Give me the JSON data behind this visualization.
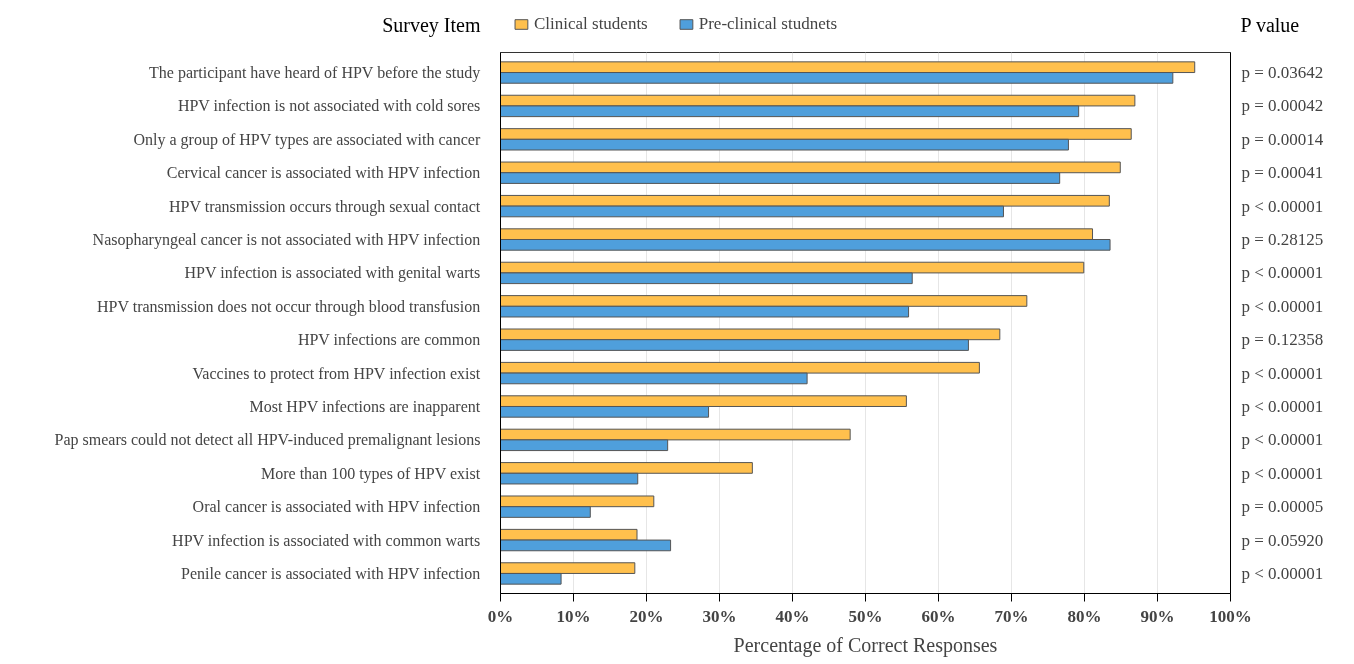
{
  "chart_data": {
    "type": "bar",
    "orientation": "horizontal",
    "ylabel": "Survey Item",
    "y2label": "P value",
    "xlabel": "Percentage of Correct Responses",
    "categories": [
      "The participant have heard of HPV before the study",
      "HPV infection is not associated with cold sores",
      "Only a group of HPV types are associated with cancer",
      "Cervical cancer is associated with HPV infection",
      "HPV transmission occurs through sexual contact",
      "Nasopharyngeal cancer is not associated with HPV infection",
      "HPV infection is associated with genital warts",
      "HPV transmission does not occur through blood transfusion",
      "HPV infections are common",
      "Vaccines to protect from HPV infection exist",
      "Most HPV infections are inapparent",
      "Pap smears could not detect all HPV-induced premalignant lesions",
      "More than 100 types of HPV exist",
      "Oral cancer is associated with HPV infection",
      "HPV infection is associated with common warts",
      "Penile cancer is associated with HPV infection"
    ],
    "series": [
      {
        "name": "Clinical students",
        "color": "#ffc04d",
        "values": [
          95.1,
          86.9,
          86.4,
          84.9,
          83.4,
          81.1,
          79.9,
          72.1,
          68.4,
          65.6,
          55.6,
          47.9,
          34.5,
          21.0,
          18.7,
          18.4
        ]
      },
      {
        "name": "Pre-clinical studnets",
        "color": "#4f9fdc",
        "values": [
          92.1,
          79.2,
          77.8,
          76.6,
          68.9,
          83.5,
          56.4,
          55.9,
          64.1,
          42.0,
          28.5,
          22.9,
          18.8,
          12.3,
          23.3,
          8.3
        ]
      }
    ],
    "xlim": [
      0,
      100
    ],
    "xticks": [
      {
        "value": 0,
        "label": "0%"
      },
      {
        "value": 10,
        "label": "10%"
      },
      {
        "value": 20,
        "label": "20%"
      },
      {
        "value": 30,
        "label": "30%"
      },
      {
        "value": 40,
        "label": "40%"
      },
      {
        "value": 50,
        "label": "50%"
      },
      {
        "value": 60,
        "label": "60%"
      },
      {
        "value": 70,
        "label": "70%"
      },
      {
        "value": 80,
        "label": "80%"
      },
      {
        "value": 90,
        "label": "90%"
      },
      {
        "value": 100,
        "label": "100%"
      }
    ],
    "grid": "x",
    "legend": "top",
    "annotations": [
      "p = 0.03642",
      "p = 0.00042",
      "p = 0.00014",
      "p = 0.00041",
      "p < 0.00001",
      "p = 0.28125",
      "p < 0.00001",
      "p < 0.00001",
      "p = 0.12358",
      "p < 0.00001",
      "p < 0.00001",
      "p < 0.00001",
      "p < 0.00001",
      "p = 0.00005",
      "p = 0.05920",
      "p < 0.00001"
    ]
  }
}
